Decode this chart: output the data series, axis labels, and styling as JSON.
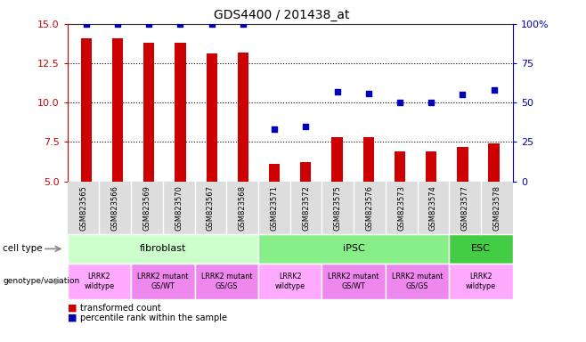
{
  "title": "GDS4400 / 201438_at",
  "samples": [
    "GSM823565",
    "GSM823566",
    "GSM823569",
    "GSM823570",
    "GSM823567",
    "GSM823568",
    "GSM823571",
    "GSM823572",
    "GSM823575",
    "GSM823576",
    "GSM823573",
    "GSM823574",
    "GSM823577",
    "GSM823578"
  ],
  "bar_values": [
    14.1,
    14.1,
    13.8,
    13.8,
    13.1,
    13.2,
    6.1,
    6.2,
    7.8,
    7.8,
    6.9,
    6.9,
    7.2,
    7.4
  ],
  "dot_values": [
    100,
    100,
    100,
    100,
    100,
    100,
    33,
    35,
    57,
    56,
    50,
    50,
    55,
    58
  ],
  "ylim": [
    5,
    15
  ],
  "y2lim": [
    0,
    100
  ],
  "yticks": [
    5,
    7.5,
    10,
    12.5,
    15
  ],
  "y2ticks": [
    0,
    25,
    50,
    75,
    100
  ],
  "bar_color": "#cc0000",
  "dot_color": "#0000bb",
  "cell_type_groups": [
    {
      "label": "fibroblast",
      "start": 0,
      "end": 5,
      "color": "#ccffcc"
    },
    {
      "label": "iPSC",
      "start": 6,
      "end": 11,
      "color": "#88ee88"
    },
    {
      "label": "ESC",
      "start": 12,
      "end": 13,
      "color": "#44cc44"
    }
  ],
  "genotype_groups": [
    {
      "label": "LRRK2\nwildtype",
      "start": 0,
      "end": 1,
      "color": "#ffaaff"
    },
    {
      "label": "LRRK2 mutant\nGS/WT",
      "start": 2,
      "end": 3,
      "color": "#ee88ee"
    },
    {
      "label": "LRRK2 mutant\nGS/GS",
      "start": 4,
      "end": 5,
      "color": "#ee88ee"
    },
    {
      "label": "LRRK2\nwildtype",
      "start": 6,
      "end": 7,
      "color": "#ffaaff"
    },
    {
      "label": "LRRK2 mutant\nGS/WT",
      "start": 8,
      "end": 9,
      "color": "#ee88ee"
    },
    {
      "label": "LRRK2 mutant\nGS/GS",
      "start": 10,
      "end": 11,
      "color": "#ee88ee"
    },
    {
      "label": "LRRK2\nwildtype",
      "start": 12,
      "end": 13,
      "color": "#ffaaff"
    }
  ],
  "legend_items": [
    {
      "label": "transformed count",
      "color": "#cc0000"
    },
    {
      "label": "percentile rank within the sample",
      "color": "#0000bb"
    }
  ],
  "ylabel_color": "#cc0000",
  "y2label_color": "#0000bb",
  "grid_dotted_ticks": [
    7.5,
    10,
    12.5
  ],
  "bar_width": 0.35,
  "dot_size": 20
}
